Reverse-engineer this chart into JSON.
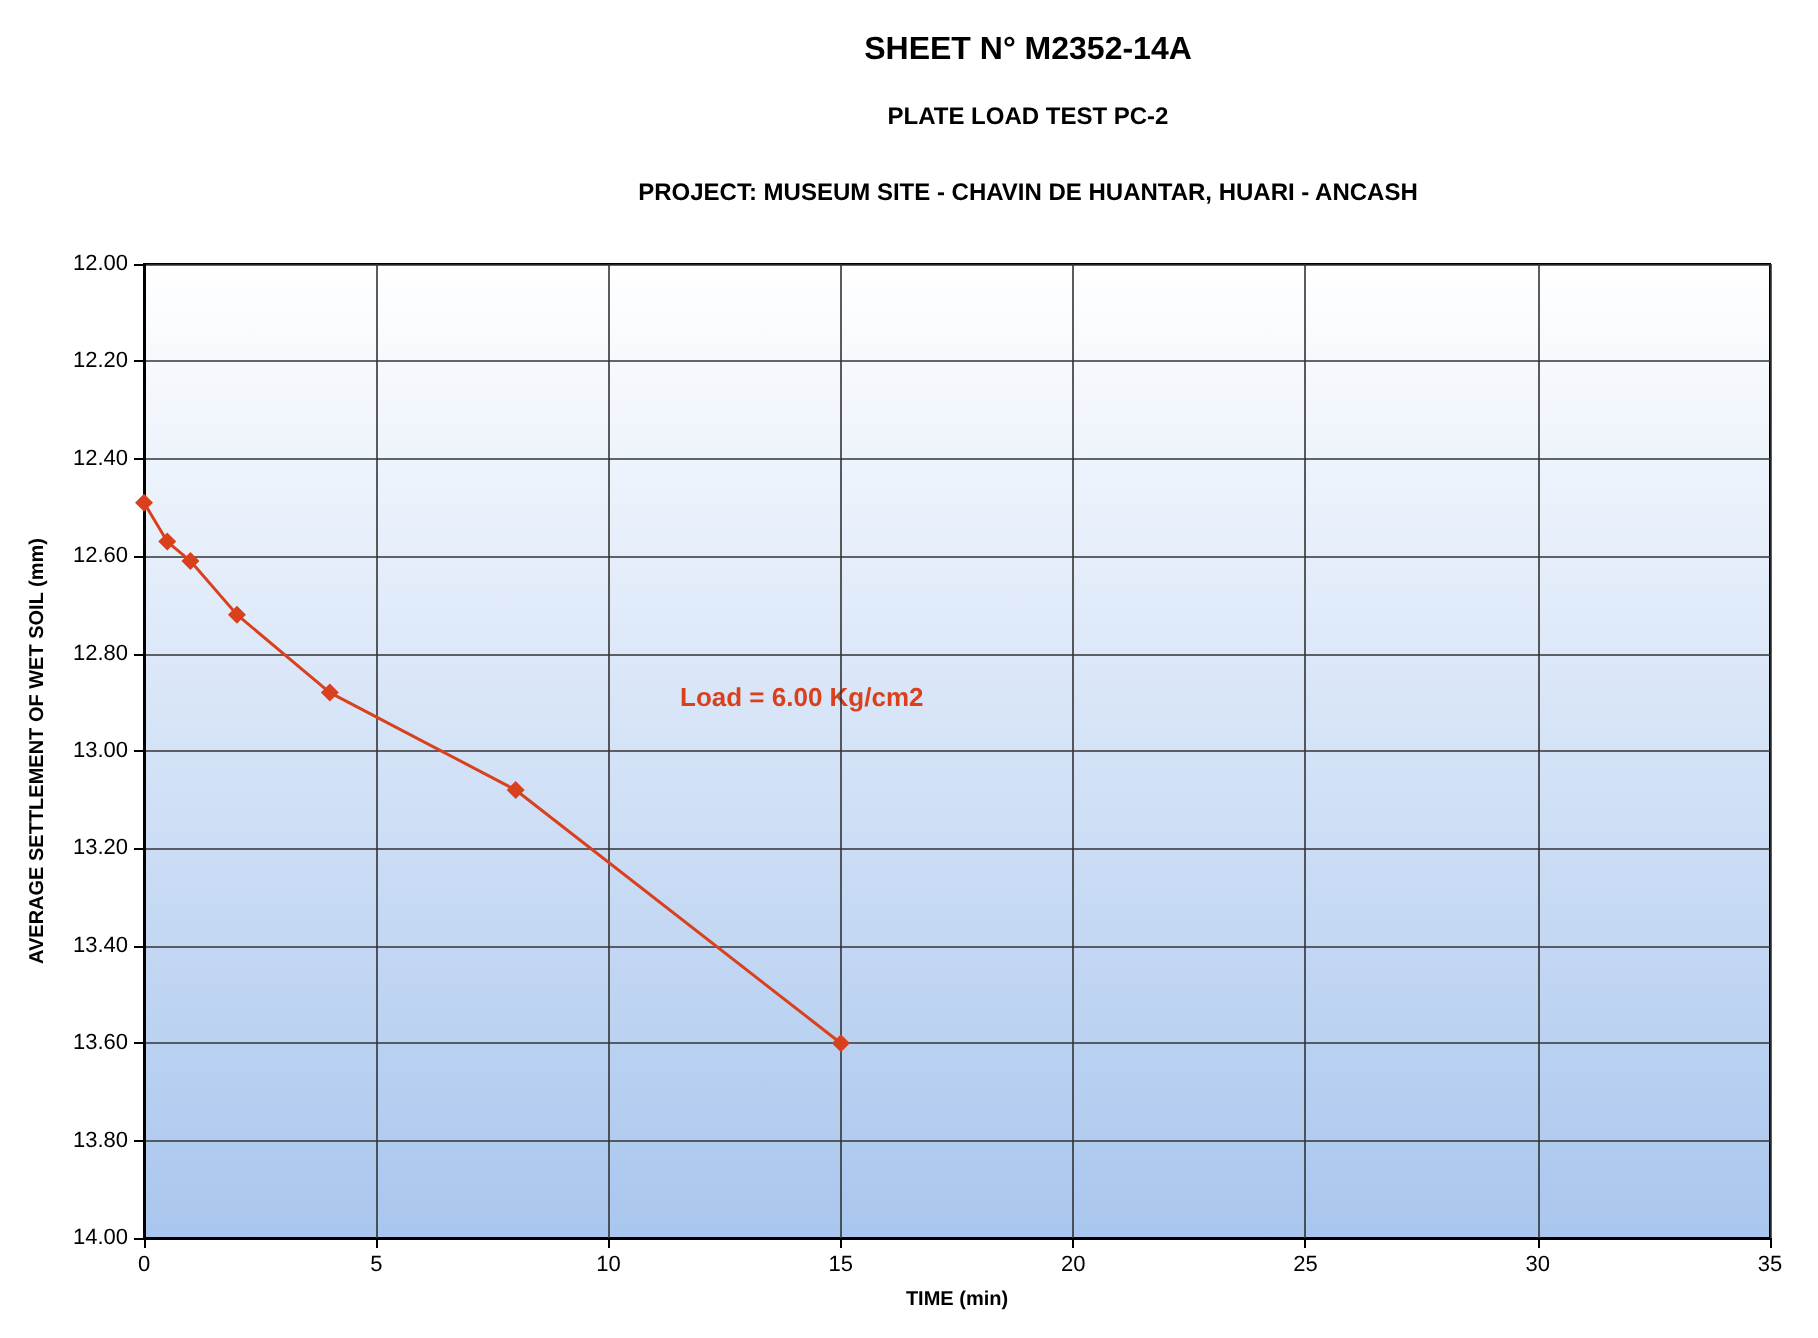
{
  "chart_data": {
    "type": "line",
    "title": "SHEET N° M2352-14A",
    "subtitle": "PLATE LOAD TEST PC-2\nPROJECT: MUSEUM SITE - CHAVIN DE HUANTAR, HUARI - ANCASH",
    "xlabel": "TIME (min)",
    "ylabel": "AVERAGE SETTLEMENT OF WET SOIL (mm)",
    "x": [
      0,
      0.5,
      1,
      2,
      4,
      8,
      15
    ],
    "series": [
      {
        "color": "#d9411e",
        "values": [
          12.49,
          12.57,
          12.61,
          12.72,
          12.88,
          13.08,
          13.6
        ]
      }
    ],
    "xlim": [
      0,
      35
    ],
    "xticks": [
      0,
      5,
      10,
      15,
      20,
      25,
      30,
      35
    ],
    "ylim": [
      14,
      12
    ],
    "yticks": [
      {
        "value": 12,
        "label": "12.00"
      },
      {
        "value": 12.2,
        "label": "12.20"
      },
      {
        "value": 12.4,
        "label": "12.40"
      },
      {
        "value": 12.6,
        "label": "12.60"
      },
      {
        "value": 12.8,
        "label": "12.80"
      },
      {
        "value": 13,
        "label": "13.00"
      },
      {
        "value": 13.2,
        "label": "13.20"
      },
      {
        "value": 13.4,
        "label": "13.40"
      },
      {
        "value": 13.6,
        "label": "13.60"
      },
      {
        "value": 13.8,
        "label": "13.80"
      },
      {
        "value": 14,
        "label": "14.00"
      }
    ],
    "annotations": [
      "Load = 6.00 Kg/cm2"
    ],
    "grid": true,
    "marker": "diamond",
    "line_style": "solid"
  }
}
